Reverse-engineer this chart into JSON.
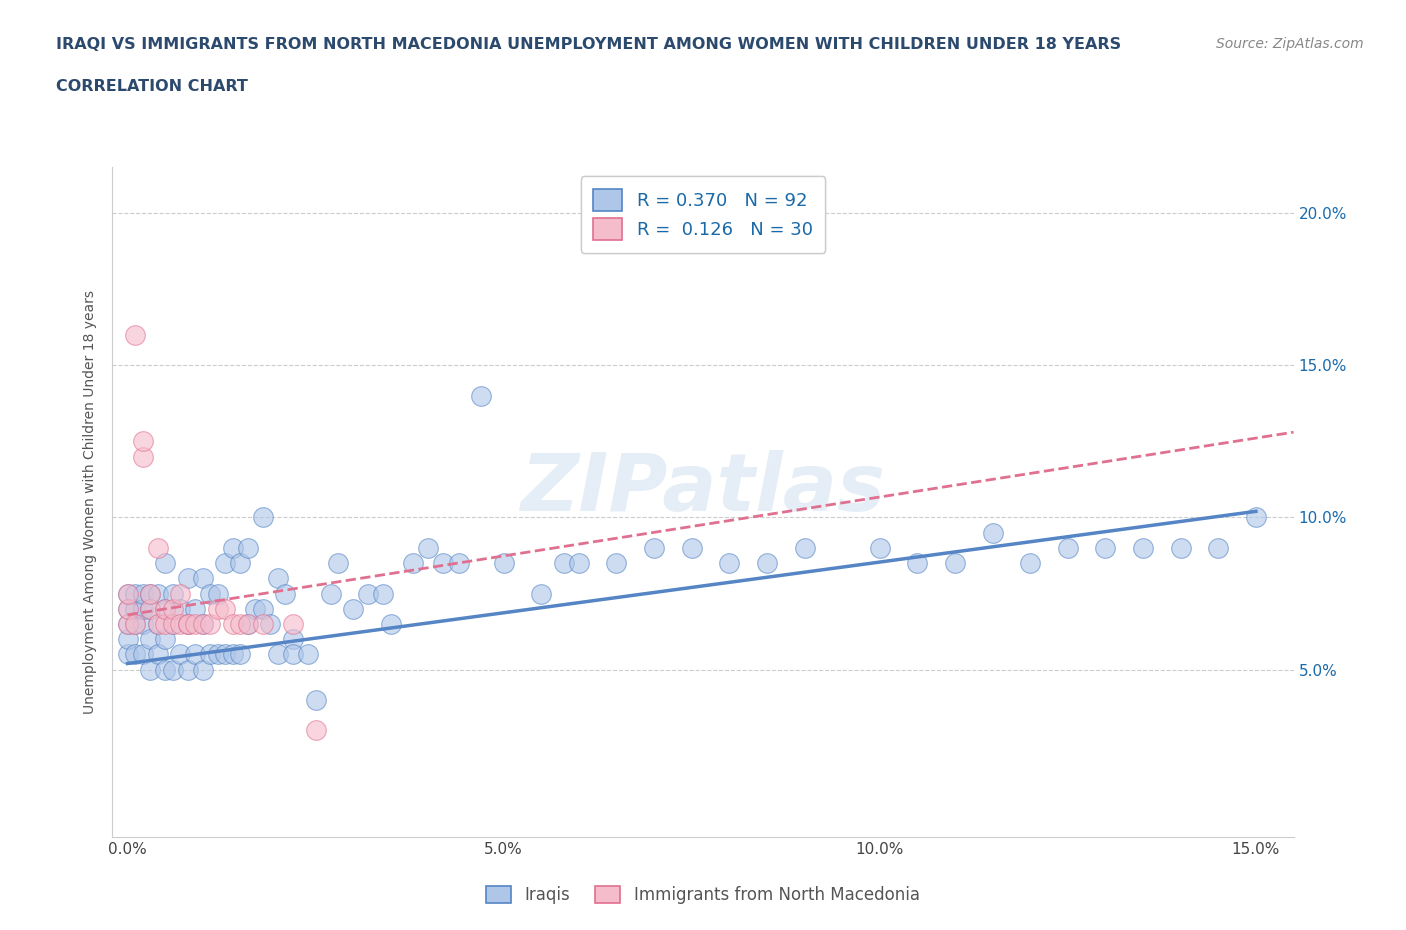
{
  "title_line1": "IRAQI VS IMMIGRANTS FROM NORTH MACEDONIA UNEMPLOYMENT AMONG WOMEN WITH CHILDREN UNDER 18 YEARS",
  "title_line2": "CORRELATION CHART",
  "source_text": "Source: ZipAtlas.com",
  "ylabel": "Unemployment Among Women with Children Under 18 years",
  "xlim": [
    -0.002,
    0.155
  ],
  "ylim": [
    -0.005,
    0.215
  ],
  "xticks": [
    0.0,
    0.05,
    0.1,
    0.15
  ],
  "xtick_labels": [
    "0.0%",
    "5.0%",
    "10.0%",
    "15.0%"
  ],
  "yticks": [
    0.05,
    0.1,
    0.15,
    0.2
  ],
  "ytick_labels": [
    "5.0%",
    "10.0%",
    "15.0%",
    "20.0%"
  ],
  "iraqi_color": "#aec6e8",
  "iraqi_edge": "#5585c5",
  "macedonian_color": "#f5bccb",
  "macedonian_edge": "#e07090",
  "R_iraqi": 0.37,
  "N_iraqi": 92,
  "R_macedonian": 0.126,
  "N_macedonian": 30,
  "legend_label_iraqi": "Iraqis",
  "legend_label_macedonian": "Immigrants from North Macedonia",
  "watermark": "ZIPatlas",
  "title_color": "#2c4a6e",
  "axis_label_color": "#555555",
  "tick_color": "#444444",
  "legend_R_color": "#1a6aaa",
  "background_color": "#ffffff",
  "grid_color": "#cccccc",
  "iraqi_scatter_x": [
    0.0,
    0.0,
    0.0,
    0.0,
    0.0,
    0.001,
    0.001,
    0.001,
    0.001,
    0.002,
    0.002,
    0.002,
    0.002,
    0.003,
    0.003,
    0.003,
    0.003,
    0.004,
    0.004,
    0.004,
    0.005,
    0.005,
    0.005,
    0.005,
    0.006,
    0.006,
    0.006,
    0.007,
    0.007,
    0.008,
    0.008,
    0.008,
    0.009,
    0.009,
    0.01,
    0.01,
    0.01,
    0.011,
    0.011,
    0.012,
    0.012,
    0.013,
    0.013,
    0.014,
    0.014,
    0.015,
    0.015,
    0.016,
    0.016,
    0.017,
    0.018,
    0.018,
    0.019,
    0.02,
    0.02,
    0.021,
    0.022,
    0.022,
    0.024,
    0.025,
    0.027,
    0.028,
    0.03,
    0.032,
    0.034,
    0.035,
    0.038,
    0.04,
    0.042,
    0.044,
    0.047,
    0.05,
    0.055,
    0.058,
    0.06,
    0.065,
    0.07,
    0.075,
    0.08,
    0.085,
    0.09,
    0.1,
    0.105,
    0.11,
    0.115,
    0.12,
    0.125,
    0.13,
    0.135,
    0.14,
    0.145,
    0.15
  ],
  "iraqi_scatter_y": [
    0.055,
    0.06,
    0.065,
    0.07,
    0.075,
    0.055,
    0.065,
    0.07,
    0.075,
    0.055,
    0.065,
    0.07,
    0.075,
    0.05,
    0.06,
    0.07,
    0.075,
    0.055,
    0.065,
    0.075,
    0.05,
    0.06,
    0.07,
    0.085,
    0.05,
    0.065,
    0.075,
    0.055,
    0.07,
    0.05,
    0.065,
    0.08,
    0.055,
    0.07,
    0.05,
    0.065,
    0.08,
    0.055,
    0.075,
    0.055,
    0.075,
    0.055,
    0.085,
    0.055,
    0.09,
    0.055,
    0.085,
    0.065,
    0.09,
    0.07,
    0.07,
    0.1,
    0.065,
    0.055,
    0.08,
    0.075,
    0.06,
    0.055,
    0.055,
    0.04,
    0.075,
    0.085,
    0.07,
    0.075,
    0.075,
    0.065,
    0.085,
    0.09,
    0.085,
    0.085,
    0.14,
    0.085,
    0.075,
    0.085,
    0.085,
    0.085,
    0.09,
    0.09,
    0.085,
    0.085,
    0.09,
    0.09,
    0.085,
    0.085,
    0.095,
    0.085,
    0.09,
    0.09,
    0.09,
    0.09,
    0.09,
    0.1
  ],
  "macedonian_scatter_x": [
    0.0,
    0.0,
    0.0,
    0.001,
    0.001,
    0.002,
    0.002,
    0.003,
    0.003,
    0.004,
    0.004,
    0.005,
    0.005,
    0.006,
    0.006,
    0.007,
    0.007,
    0.008,
    0.008,
    0.009,
    0.01,
    0.011,
    0.012,
    0.013,
    0.014,
    0.015,
    0.016,
    0.018,
    0.022,
    0.025
  ],
  "macedonian_scatter_y": [
    0.065,
    0.07,
    0.075,
    0.16,
    0.065,
    0.12,
    0.125,
    0.07,
    0.075,
    0.065,
    0.09,
    0.065,
    0.07,
    0.065,
    0.07,
    0.065,
    0.075,
    0.065,
    0.065,
    0.065,
    0.065,
    0.065,
    0.07,
    0.07,
    0.065,
    0.065,
    0.065,
    0.065,
    0.065,
    0.03
  ],
  "iraqi_trend_x": [
    0.0,
    0.15
  ],
  "iraqi_trend_y": [
    0.052,
    0.102
  ],
  "macedonian_trend_x": [
    0.0,
    0.155
  ],
  "macedonian_trend_y": [
    0.068,
    0.128
  ]
}
